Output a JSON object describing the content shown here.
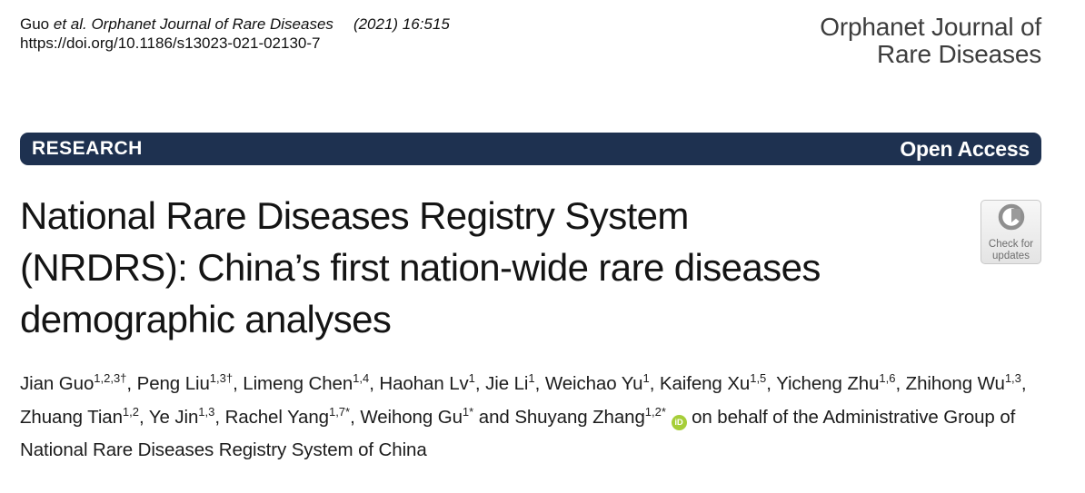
{
  "header": {
    "citation": {
      "author_short": "Guo",
      "etal_journal": "et al. Orphanet Journal of Rare Diseases",
      "issue": "(2021) 16:515",
      "doi": "https://doi.org/10.1186/s13023-021-02130-7"
    },
    "journal_name_line1": "Orphanet Journal of",
    "journal_name_line2": "Rare Diseases"
  },
  "banner": {
    "left_label": "RESEARCH",
    "right_label": "Open Access",
    "background": "#1e3150"
  },
  "check_updates": {
    "line1": "Check for",
    "line2": "updates"
  },
  "article": {
    "title_lines": [
      "National Rare Diseases Registry System",
      "(NRDRS): China’s first nation-wide rare diseases",
      "demographic analyses"
    ],
    "authors": [
      {
        "name": "Jian Guo",
        "sup": "1,2,3†"
      },
      {
        "name": "Peng Liu",
        "sup": "1,3†"
      },
      {
        "name": "Limeng Chen",
        "sup": "1,4"
      },
      {
        "name": "Haohan Lv",
        "sup": "1"
      },
      {
        "name": "Jie Li",
        "sup": "1"
      },
      {
        "name": "Weichao Yu",
        "sup": "1"
      },
      {
        "name": "Kaifeng Xu",
        "sup": "1,5"
      },
      {
        "name": "Yicheng Zhu",
        "sup": "1,6"
      },
      {
        "name": "Zhihong Wu",
        "sup": "1,3"
      },
      {
        "name": "Zhuang Tian",
        "sup": "1,2"
      },
      {
        "name": "Ye Jin",
        "sup": "1,3"
      },
      {
        "name": "Rachel Yang",
        "sup": "1,7*"
      },
      {
        "name": "Weihong Gu",
        "sup": "1*"
      },
      {
        "name": "Shuyang Zhang",
        "sup": "1,2*"
      }
    ],
    "separator": ", ",
    "and_separator": " and ",
    "orcid_label": "iD",
    "orcid_color": "#a6ce39",
    "authors_suffix": "on behalf of the Administrative Group of National Rare Diseases Registry System of China"
  }
}
